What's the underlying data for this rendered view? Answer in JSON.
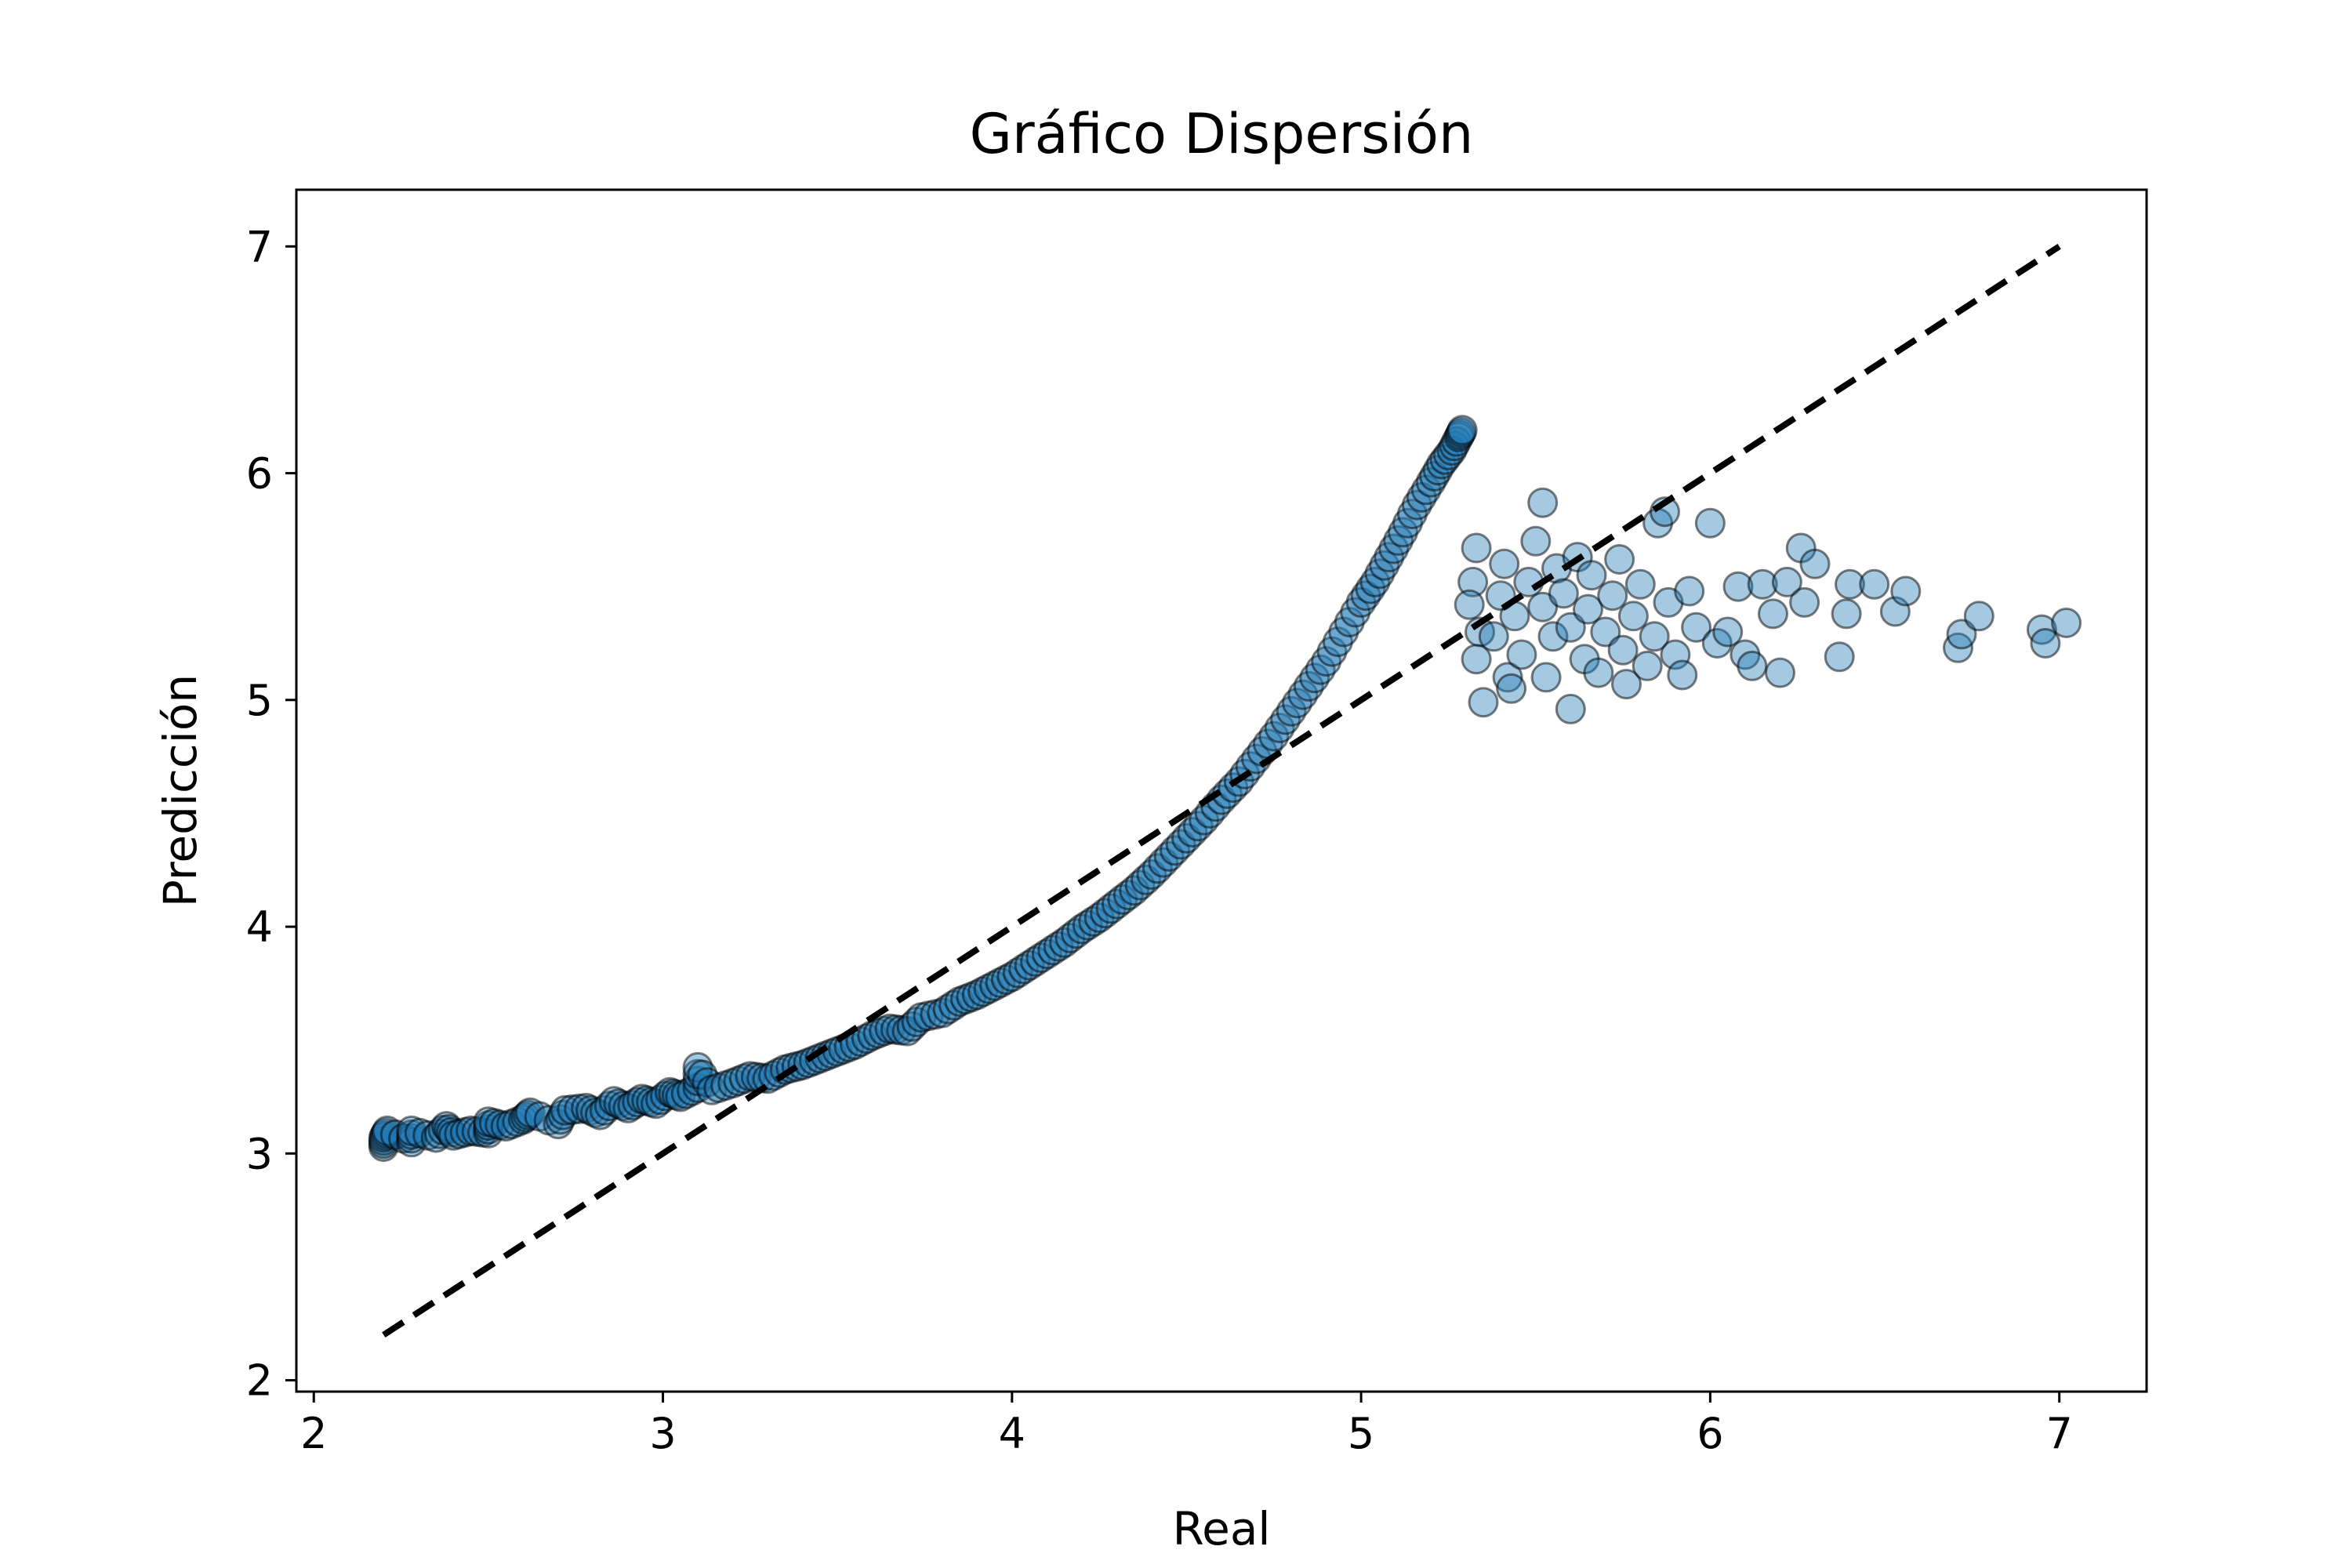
{
  "chart_data": {
    "type": "scatter",
    "title": "Gráfico Dispersión",
    "xlabel": "Real",
    "ylabel": "Predicción",
    "xlim": [
      1.95,
      7.25
    ],
    "ylim": [
      1.95,
      7.25
    ],
    "xticks": [
      2,
      3,
      4,
      5,
      6,
      7
    ],
    "yticks": [
      2,
      3,
      4,
      5,
      6,
      7
    ],
    "grid": false,
    "legend": "none",
    "point_color": "#1f77b4",
    "point_alpha": 0.4,
    "edge_color": "#000000",
    "reference_line": {
      "x": [
        2.2,
        7.0
      ],
      "y": [
        2.2,
        7.0
      ],
      "style": "dashed",
      "color": "#000000"
    },
    "curve_points": [
      [
        2.2,
        3.03
      ],
      [
        2.2,
        3.07
      ],
      [
        2.21,
        3.1
      ],
      [
        2.28,
        3.05
      ],
      [
        2.28,
        3.1
      ],
      [
        2.35,
        3.07
      ],
      [
        2.38,
        3.12
      ],
      [
        2.4,
        3.08
      ],
      [
        2.45,
        3.1
      ],
      [
        2.5,
        3.09
      ],
      [
        2.5,
        3.14
      ],
      [
        2.55,
        3.12
      ],
      [
        2.6,
        3.15
      ],
      [
        2.62,
        3.18
      ],
      [
        2.7,
        3.13
      ],
      [
        2.72,
        3.19
      ],
      [
        2.78,
        3.2
      ],
      [
        2.82,
        3.17
      ],
      [
        2.86,
        3.23
      ],
      [
        2.9,
        3.2
      ],
      [
        2.94,
        3.24
      ],
      [
        2.98,
        3.22
      ],
      [
        3.02,
        3.27
      ],
      [
        3.05,
        3.25
      ],
      [
        3.1,
        3.29
      ],
      [
        3.1,
        3.38
      ],
      [
        3.14,
        3.28
      ],
      [
        3.2,
        3.31
      ],
      [
        3.25,
        3.34
      ],
      [
        3.3,
        3.33
      ],
      [
        3.35,
        3.37
      ],
      [
        3.4,
        3.39
      ],
      [
        3.45,
        3.42
      ],
      [
        3.5,
        3.45
      ],
      [
        3.55,
        3.48
      ],
      [
        3.6,
        3.52
      ],
      [
        3.65,
        3.55
      ],
      [
        3.7,
        3.54
      ],
      [
        3.74,
        3.6
      ],
      [
        3.8,
        3.62
      ],
      [
        3.85,
        3.67
      ],
      [
        3.9,
        3.7
      ],
      [
        3.95,
        3.74
      ],
      [
        4.0,
        3.78
      ],
      [
        4.05,
        3.83
      ],
      [
        4.1,
        3.88
      ],
      [
        4.15,
        3.93
      ],
      [
        4.2,
        3.99
      ],
      [
        4.25,
        4.04
      ],
      [
        4.3,
        4.1
      ],
      [
        4.35,
        4.16
      ],
      [
        4.4,
        4.23
      ],
      [
        4.45,
        4.31
      ],
      [
        4.5,
        4.39
      ],
      [
        4.55,
        4.47
      ],
      [
        4.6,
        4.56
      ],
      [
        4.65,
        4.64
      ],
      [
        4.7,
        4.74
      ],
      [
        4.75,
        4.84
      ],
      [
        4.8,
        4.95
      ],
      [
        4.85,
        5.06
      ],
      [
        4.9,
        5.17
      ],
      [
        4.95,
        5.3
      ],
      [
        5.0,
        5.43
      ],
      [
        5.04,
        5.52
      ],
      [
        5.08,
        5.63
      ],
      [
        5.12,
        5.74
      ],
      [
        5.16,
        5.86
      ],
      [
        5.2,
        5.96
      ],
      [
        5.23,
        6.04
      ],
      [
        5.26,
        6.1
      ],
      [
        5.28,
        6.16
      ],
      [
        5.29,
        6.19
      ]
    ],
    "scatter_points": [
      [
        5.33,
        5.67
      ],
      [
        5.32,
        5.52
      ],
      [
        5.31,
        5.42
      ],
      [
        5.34,
        5.3
      ],
      [
        5.33,
        5.18
      ],
      [
        5.35,
        4.99
      ],
      [
        5.38,
        5.28
      ],
      [
        5.4,
        5.46
      ],
      [
        5.41,
        5.6
      ],
      [
        5.42,
        5.1
      ],
      [
        5.43,
        5.05
      ],
      [
        5.44,
        5.37
      ],
      [
        5.46,
        5.2
      ],
      [
        5.48,
        5.52
      ],
      [
        5.5,
        5.7
      ],
      [
        5.52,
        5.87
      ],
      [
        5.52,
        5.41
      ],
      [
        5.53,
        5.1
      ],
      [
        5.55,
        5.28
      ],
      [
        5.56,
        5.58
      ],
      [
        5.58,
        5.47
      ],
      [
        5.6,
        5.32
      ],
      [
        5.6,
        4.96
      ],
      [
        5.62,
        5.63
      ],
      [
        5.64,
        5.18
      ],
      [
        5.65,
        5.4
      ],
      [
        5.66,
        5.55
      ],
      [
        5.68,
        5.12
      ],
      [
        5.7,
        5.3
      ],
      [
        5.72,
        5.46
      ],
      [
        5.74,
        5.62
      ],
      [
        5.75,
        5.22
      ],
      [
        5.76,
        5.07
      ],
      [
        5.78,
        5.37
      ],
      [
        5.8,
        5.51
      ],
      [
        5.82,
        5.15
      ],
      [
        5.84,
        5.28
      ],
      [
        5.85,
        5.78
      ],
      [
        5.87,
        5.83
      ],
      [
        5.88,
        5.43
      ],
      [
        5.9,
        5.2
      ],
      [
        5.92,
        5.11
      ],
      [
        5.94,
        5.48
      ],
      [
        5.96,
        5.32
      ],
      [
        6.0,
        5.78
      ],
      [
        6.02,
        5.25
      ],
      [
        6.05,
        5.3
      ],
      [
        6.08,
        5.5
      ],
      [
        6.1,
        5.2
      ],
      [
        6.12,
        5.15
      ],
      [
        6.15,
        5.51
      ],
      [
        6.18,
        5.38
      ],
      [
        6.2,
        5.12
      ],
      [
        6.22,
        5.52
      ],
      [
        6.26,
        5.67
      ],
      [
        6.27,
        5.43
      ],
      [
        6.3,
        5.6
      ],
      [
        6.37,
        5.19
      ],
      [
        6.39,
        5.38
      ],
      [
        6.4,
        5.51
      ],
      [
        6.47,
        5.51
      ],
      [
        6.53,
        5.39
      ],
      [
        6.56,
        5.48
      ],
      [
        6.71,
        5.23
      ],
      [
        6.72,
        5.29
      ],
      [
        6.77,
        5.37
      ],
      [
        6.95,
        5.31
      ],
      [
        6.96,
        5.25
      ],
      [
        7.02,
        5.34
      ]
    ]
  }
}
